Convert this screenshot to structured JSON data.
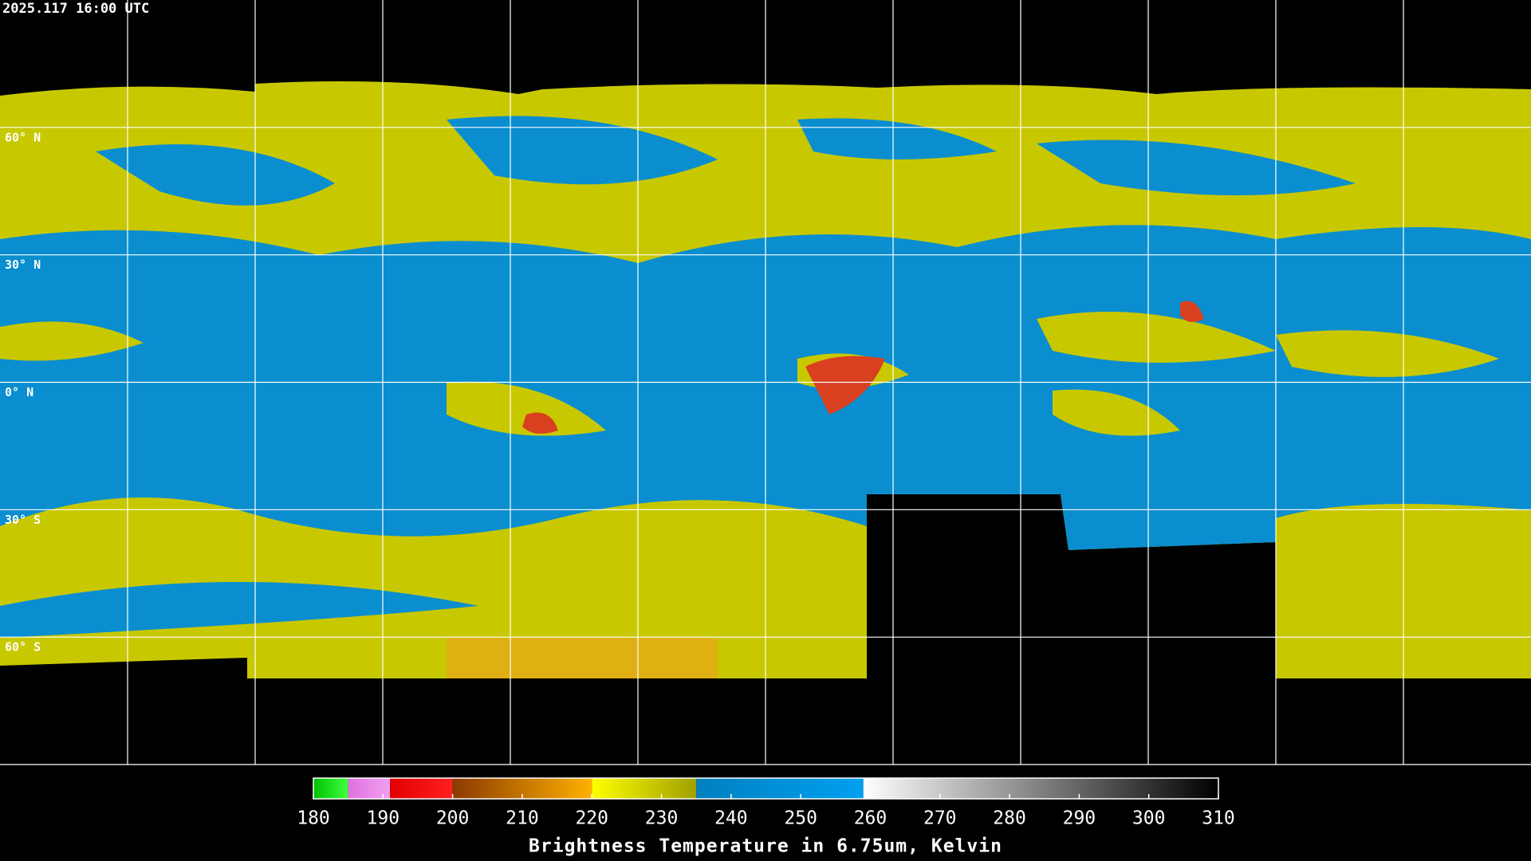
{
  "header": {
    "title": "2025.117 16:00 UTC"
  },
  "map": {
    "lat_labels": [
      {
        "value": 60,
        "label": "60° N"
      },
      {
        "value": 30,
        "label": "30° N"
      },
      {
        "value": 0,
        "label": "0° N"
      },
      {
        "value": -30,
        "label": "30° S"
      },
      {
        "value": -60,
        "label": "60° S"
      }
    ],
    "grid_color": "#ffffff"
  },
  "colorbar": {
    "title": "Brightness Temperature in 6.75um, Kelvin",
    "range": [
      180,
      310
    ],
    "ticks": [
      180,
      190,
      200,
      210,
      220,
      230,
      240,
      250,
      260,
      270,
      280,
      290,
      300,
      310
    ],
    "segments": [
      {
        "from": 180,
        "to": 185,
        "colors": [
          "#00c000",
          "#40ff40"
        ]
      },
      {
        "from": 185,
        "to": 191,
        "colors": [
          "#e070e0",
          "#f0a0f0"
        ]
      },
      {
        "from": 191,
        "to": 200,
        "colors": [
          "#e00000",
          "#ff2020"
        ]
      },
      {
        "from": 200,
        "to": 220,
        "colors": [
          "#8a3a00",
          "#ffb000"
        ]
      },
      {
        "from": 220,
        "to": 235,
        "colors": [
          "#ffff00",
          "#a0a000"
        ]
      },
      {
        "from": 235,
        "to": 259,
        "colors": [
          "#0080c0",
          "#00a0f0"
        ]
      },
      {
        "from": 259,
        "to": 310,
        "colors": [
          "#ffffff",
          "#000000"
        ]
      }
    ]
  }
}
